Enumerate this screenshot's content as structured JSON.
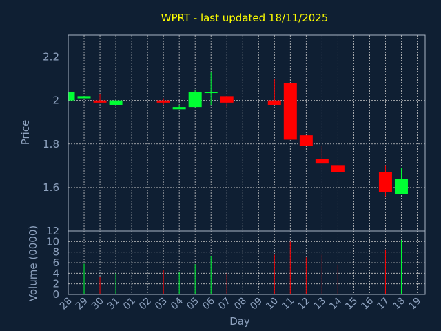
{
  "chart_data": {
    "type": "candlestick",
    "title": "WPRT - last updated 18/11/2025",
    "xlabel": "Day",
    "x_ticks": [
      "28",
      "29",
      "30",
      "31",
      "01",
      "02",
      "03",
      "04",
      "05",
      "06",
      "07",
      "08",
      "09",
      "10",
      "11",
      "12",
      "13",
      "14",
      "15",
      "16",
      "17",
      "18",
      "19"
    ],
    "colors": {
      "background": "#0f1f33",
      "up": "#00ff33",
      "down": "#ff0000",
      "grid": "#c8c8c8",
      "text": "#8fa3c0",
      "title": "#ffff00"
    },
    "price_panel": {
      "ylabel": "Price",
      "ylim": [
        1.4,
        2.3
      ],
      "yticks": [
        1.6,
        1.8,
        2,
        2.2
      ],
      "ytick_labels": [
        "1.6",
        "1.8",
        "2",
        "2.2"
      ],
      "grid": true
    },
    "volume_panel": {
      "ylabel": "Volume (0000)",
      "ylim": [
        0,
        12
      ],
      "yticks": [
        0,
        2,
        4,
        6,
        8,
        10,
        12
      ],
      "ytick_labels": [
        "0",
        "2",
        "4",
        "6",
        "8",
        "10",
        "12"
      ],
      "grid": true
    },
    "candles": [
      {
        "day": "28",
        "open": 2.0,
        "high": 2.04,
        "low": 2.0,
        "close": 2.04,
        "volume": 0
      },
      {
        "day": "29",
        "open": 2.01,
        "high": 2.02,
        "low": 2.01,
        "close": 2.02,
        "volume": 5.8
      },
      {
        "day": "30",
        "open": 2.0,
        "high": 2.03,
        "low": 1.99,
        "close": 1.99,
        "volume": 3.3
      },
      {
        "day": "31",
        "open": 1.98,
        "high": 2.0,
        "low": 1.98,
        "close": 2.0,
        "volume": 4.0
      },
      {
        "day": "03",
        "open": 2.0,
        "high": 2.01,
        "low": 1.98,
        "close": 1.99,
        "volume": 4.7
      },
      {
        "day": "04",
        "open": 1.96,
        "high": 1.98,
        "low": 1.96,
        "close": 1.97,
        "volume": 4.3
      },
      {
        "day": "05",
        "open": 1.97,
        "high": 2.05,
        "low": 1.97,
        "close": 2.04,
        "volume": 5.7
      },
      {
        "day": "06",
        "open": 2.04,
        "high": 2.13,
        "low": 1.98,
        "close": 2.04,
        "volume": 7.3
      },
      {
        "day": "07",
        "open": 2.02,
        "high": 2.02,
        "low": 1.97,
        "close": 1.99,
        "volume": 4.0
      },
      {
        "day": "10",
        "open": 2.0,
        "high": 2.1,
        "low": 1.98,
        "close": 1.98,
        "volume": 7.5
      },
      {
        "day": "11",
        "open": 2.08,
        "high": 2.08,
        "low": 1.82,
        "close": 1.82,
        "volume": 10.0
      },
      {
        "day": "12",
        "open": 1.84,
        "high": 1.84,
        "low": 1.79,
        "close": 1.79,
        "volume": 7.0
      },
      {
        "day": "13",
        "open": 1.73,
        "high": 1.79,
        "low": 1.71,
        "close": 1.71,
        "volume": 7.5
      },
      {
        "day": "14",
        "open": 1.7,
        "high": 1.7,
        "low": 1.67,
        "close": 1.67,
        "volume": 5.6
      },
      {
        "day": "17",
        "open": 1.67,
        "high": 1.7,
        "low": 1.56,
        "close": 1.58,
        "volume": 8.5
      },
      {
        "day": "18",
        "open": 1.57,
        "high": 1.69,
        "low": 1.57,
        "close": 1.64,
        "volume": 10.3
      }
    ]
  }
}
